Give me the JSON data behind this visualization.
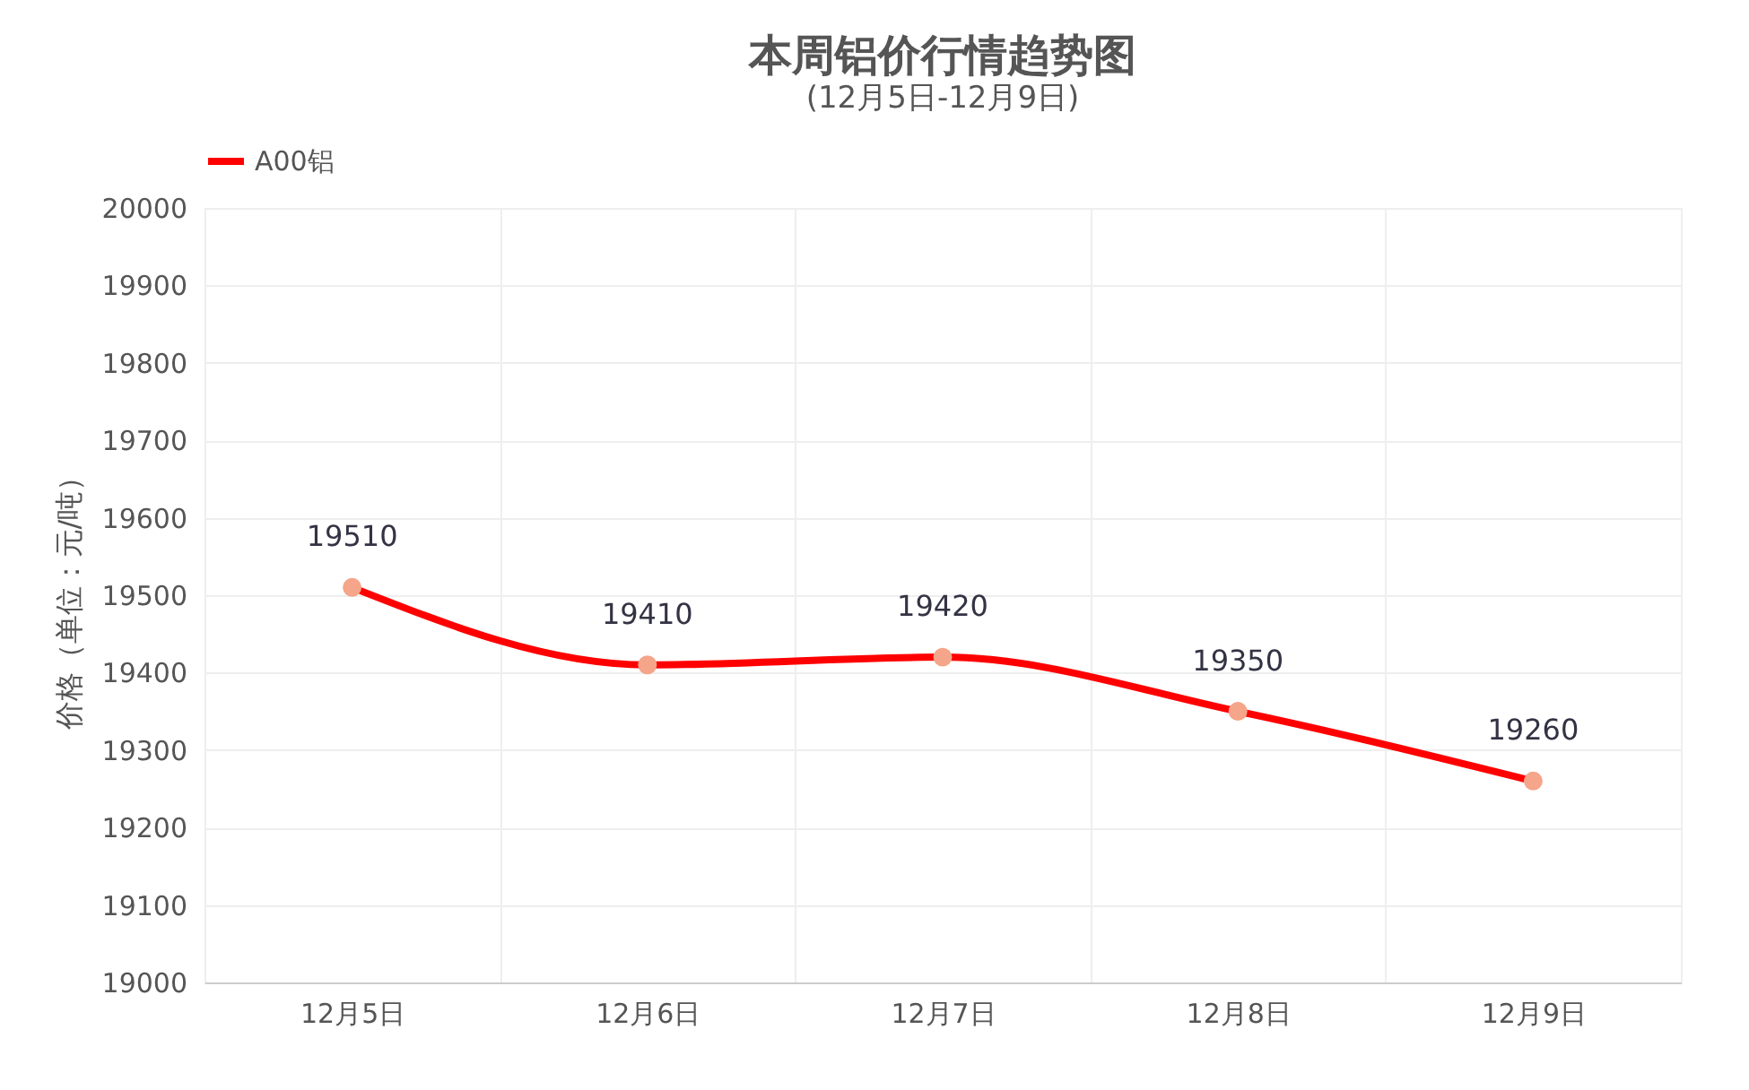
{
  "chart_data": {
    "type": "line",
    "title": "本周铝价行情趋势图",
    "subtitle": "(12月5日-12月9日)",
    "ylabel": "价格（单位：元/吨）",
    "categories": [
      "12月5日",
      "12月6日",
      "12月7日",
      "12月8日",
      "12月9日"
    ],
    "series": [
      {
        "name": "A00铝",
        "color": "#ff0000",
        "values": [
          19510,
          19410,
          19420,
          19350,
          19260
        ]
      }
    ],
    "ylim": [
      19000,
      20000
    ],
    "yticks": [
      19000,
      19100,
      19200,
      19300,
      19400,
      19500,
      19600,
      19700,
      19800,
      19900,
      20000
    ],
    "grid": true,
    "legend": "top",
    "marker": "circle",
    "line_style": "solid",
    "data_labels": true
  }
}
